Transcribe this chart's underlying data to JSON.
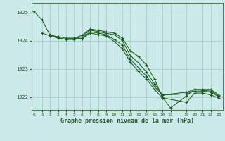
{
  "title": "Graphe pression niveau de la mer (hPa)",
  "bg_color": "#cceaea",
  "grid_color": "#aacccc",
  "line_color": "#1a5e1a",
  "x_ticks": [
    0,
    1,
    2,
    3,
    4,
    5,
    6,
    7,
    8,
    9,
    10,
    11,
    12,
    13,
    14,
    15,
    16,
    17,
    19,
    20,
    21,
    22,
    23
  ],
  "y_ticks": [
    1022,
    1023,
    1024,
    1025
  ],
  "ylim": [
    1021.55,
    1025.35
  ],
  "xlim": [
    -0.3,
    23.5
  ],
  "series": [
    {
      "x": [
        0,
        1,
        2,
        3,
        4,
        5,
        6,
        7,
        8,
        9,
        10,
        11,
        12,
        13,
        14,
        15,
        16,
        17,
        19,
        20,
        21,
        22,
        23
      ],
      "y": [
        1025.05,
        1024.75,
        1024.2,
        1024.15,
        1024.1,
        1024.1,
        1024.2,
        1024.42,
        1024.38,
        1024.32,
        1024.28,
        1024.1,
        1023.65,
        1023.45,
        1023.15,
        1022.65,
        1022.0,
        1021.62,
        1022.05,
        1022.28,
        1022.28,
        1022.28,
        1022.08
      ]
    },
    {
      "x": [
        1,
        2,
        3,
        4,
        5,
        6,
        7,
        8,
        9,
        10,
        11,
        12,
        13,
        14,
        15,
        16,
        19,
        20,
        21,
        22,
        23
      ],
      "y": [
        1024.28,
        1024.18,
        1024.1,
        1024.05,
        1024.08,
        1024.15,
        1024.38,
        1024.33,
        1024.27,
        1024.22,
        1024.02,
        1023.48,
        1023.22,
        1022.9,
        1022.48,
        1022.08,
        1022.18,
        1022.28,
        1022.25,
        1022.22,
        1022.05
      ]
    },
    {
      "x": [
        2,
        3,
        4,
        5,
        6,
        7,
        8,
        9,
        10,
        11,
        12,
        13,
        14,
        15,
        16,
        19,
        20,
        21,
        22,
        23
      ],
      "y": [
        1024.22,
        1024.12,
        1024.05,
        1024.05,
        1024.1,
        1024.32,
        1024.28,
        1024.22,
        1024.05,
        1023.85,
        1023.35,
        1023.05,
        1022.75,
        1022.38,
        1022.08,
        1022.12,
        1022.22,
        1022.22,
        1022.18,
        1022.02
      ]
    },
    {
      "x": [
        4,
        5,
        6,
        7,
        8,
        9,
        10,
        11,
        12,
        13,
        14,
        15,
        16,
        19,
        20,
        21,
        22,
        23
      ],
      "y": [
        1024.08,
        1024.08,
        1024.08,
        1024.28,
        1024.22,
        1024.18,
        1023.98,
        1023.72,
        1023.25,
        1022.92,
        1022.65,
        1022.28,
        1021.98,
        1021.82,
        1022.15,
        1022.15,
        1022.08,
        1021.98
      ]
    }
  ]
}
